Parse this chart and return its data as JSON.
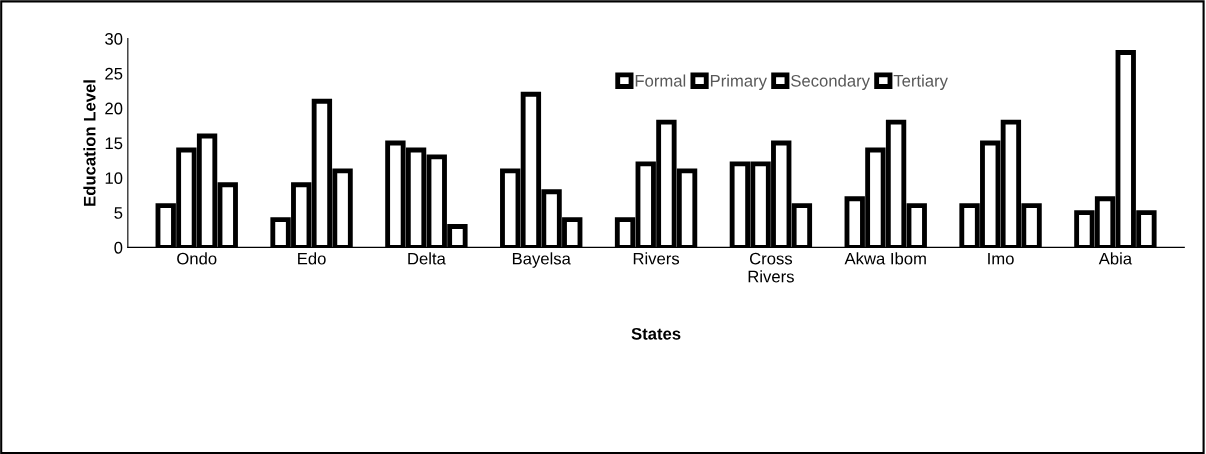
{
  "chart_data": {
    "type": "bar",
    "xlabel": "States",
    "ylabel": "Education Level",
    "categories": [
      "Ondo",
      "Edo",
      "Delta",
      "Bayelsa",
      "Rivers",
      "Cross\nRivers",
      "Akwa Ibom",
      "Imo",
      "Abia"
    ],
    "series": [
      {
        "name": "Formal",
        "color": "#ffffff",
        "values": [
          6,
          4,
          15,
          11,
          4,
          12,
          7,
          6,
          5
        ]
      },
      {
        "name": "Primary",
        "color": "#ffffff",
        "values": [
          14,
          9,
          14,
          22,
          12,
          12,
          14,
          15,
          7
        ]
      },
      {
        "name": "Secondary",
        "color": "#ffffff",
        "values": [
          16,
          21,
          13,
          8,
          18,
          15,
          18,
          18,
          28
        ]
      },
      {
        "name": "Tertiary",
        "color": "#ffffff",
        "values": [
          9,
          11,
          3,
          4,
          11,
          6,
          6,
          6,
          5
        ]
      }
    ],
    "ylim": [
      0,
      30
    ],
    "yticks": [
      0,
      5,
      10,
      15,
      20,
      25,
      30
    ],
    "grid": false,
    "legend": "top"
  }
}
